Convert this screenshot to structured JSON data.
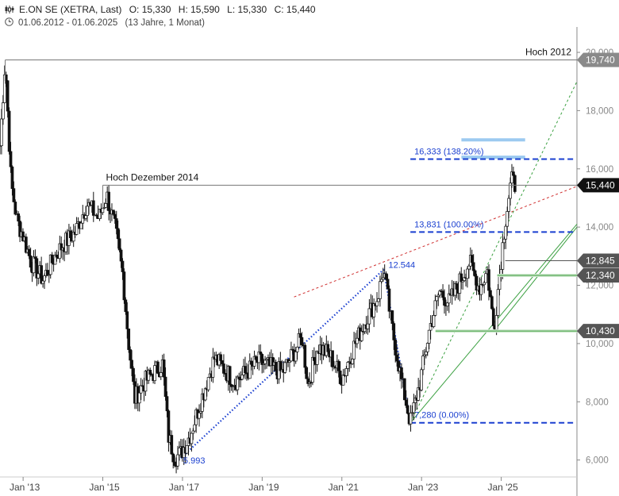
{
  "header": {
    "symbol_line": "E.ON SE (XETRA, Last)",
    "open": "O: 15,330",
    "high": "H: 15,590",
    "low": "L: 15,330",
    "close": "C: 15,440",
    "range": "01.06.2012 - 01.06.2025",
    "duration": "(13 Jahre, 1 Monat)",
    "icon": "candlestick-icon",
    "clock_icon": "clock-icon"
  },
  "chart_data": {
    "type": "candlestick",
    "x_tick_labels": [
      "Jan '13",
      "Jan '15",
      "Jan '17",
      "Jan '19",
      "Jan '21",
      "Jan '23",
      "Jan '25"
    ],
    "x_tick_years": [
      2013,
      2015,
      2017,
      2019,
      2021,
      2023,
      2025
    ],
    "x_range": [
      2012.42,
      2026.9
    ],
    "y_tick_labels": [
      "6,000",
      "8,000",
      "10,000",
      "12,000",
      "14,000",
      "16,000",
      "18,000",
      "20,000"
    ],
    "y_ticks": [
      6,
      8,
      10,
      12,
      14,
      16,
      18,
      20
    ],
    "ylim": [
      5.5,
      20.6
    ],
    "grid": false,
    "path": [
      [
        2012.42,
        16.8
      ],
      [
        2012.55,
        19.74
      ],
      [
        2012.7,
        15.5
      ],
      [
        2012.85,
        14.2
      ],
      [
        2013.0,
        13.7
      ],
      [
        2013.2,
        12.8
      ],
      [
        2013.5,
        12.2
      ],
      [
        2013.8,
        13.0
      ],
      [
        2014.0,
        13.4
      ],
      [
        2014.3,
        13.8
      ],
      [
        2014.6,
        14.8
      ],
      [
        2014.9,
        14.3
      ],
      [
        2015.1,
        15.1
      ],
      [
        2015.3,
        14.0
      ],
      [
        2015.5,
        12.4
      ],
      [
        2015.65,
        10.0
      ],
      [
        2015.8,
        8.1
      ],
      [
        2016.0,
        8.6
      ],
      [
        2016.2,
        8.9
      ],
      [
        2016.5,
        9.3
      ],
      [
        2016.65,
        6.8
      ],
      [
        2016.8,
        6.1
      ],
      [
        2016.95,
        6.2
      ],
      [
        2017.2,
        6.9
      ],
      [
        2017.5,
        8.2
      ],
      [
        2017.8,
        9.5
      ],
      [
        2018.0,
        9.2
      ],
      [
        2018.3,
        8.7
      ],
      [
        2018.6,
        9.0
      ],
      [
        2018.9,
        9.4
      ],
      [
        2019.2,
        9.2
      ],
      [
        2019.5,
        9.0
      ],
      [
        2019.8,
        9.7
      ],
      [
        2020.0,
        10.2
      ],
      [
        2020.15,
        8.6
      ],
      [
        2020.4,
        9.9
      ],
      [
        2020.7,
        9.6
      ],
      [
        2021.0,
        8.8
      ],
      [
        2021.3,
        9.9
      ],
      [
        2021.6,
        10.8
      ],
      [
        2021.9,
        11.6
      ],
      [
        2022.05,
        12.544
      ],
      [
        2022.25,
        10.6
      ],
      [
        2022.5,
        8.7
      ],
      [
        2022.72,
        7.28
      ],
      [
        2022.95,
        8.6
      ],
      [
        2023.2,
        10.5
      ],
      [
        2023.45,
        11.8
      ],
      [
        2023.7,
        11.4
      ],
      [
        2023.95,
        12.1
      ],
      [
        2024.2,
        12.8
      ],
      [
        2024.45,
        11.9
      ],
      [
        2024.65,
        12.5
      ],
      [
        2024.82,
        10.43
      ],
      [
        2024.95,
        12.3
      ],
      [
        2025.1,
        14.2
      ],
      [
        2025.25,
        15.6
      ],
      [
        2025.35,
        15.44
      ]
    ],
    "levels": [
      {
        "value": 19.74,
        "label": "Hoch 2012",
        "tag": "19,740",
        "tag_color": "#8a8a8a",
        "line_color": "#777777",
        "style": "solid",
        "from_x": 2012.55
      },
      {
        "value": 15.44,
        "label": "Hoch Dezember 2014",
        "tag": "15,440",
        "tag_color": "#111111",
        "line_color": "#777777",
        "style": "solid",
        "from_x": 2015.0
      },
      {
        "value": 12.845,
        "label": "",
        "tag": "12,845",
        "tag_color": "#555555",
        "line_color": "#555555",
        "style": "solid",
        "from_x": 2025.1
      },
      {
        "value": 12.34,
        "label": "",
        "tag": "12,340",
        "tag_color": "#555555",
        "line_color": "#3a9a3a",
        "style": "solid-band",
        "from_x": 2024.9
      },
      {
        "value": 10.43,
        "label": "",
        "tag": "10,430",
        "tag_color": "#555555",
        "line_color": "#3a9a3a",
        "style": "solid-band",
        "from_x": 2023.35
      }
    ],
    "fib_levels": [
      {
        "value": 16.333,
        "label": "16,333 (138.20%)"
      },
      {
        "value": 13.831,
        "label": "13,831 (100.00%)"
      },
      {
        "value": 7.28,
        "label": "7,280 (0.00%)"
      }
    ],
    "fib_color": "#1a3fd0",
    "target_zone": {
      "top": 17.05,
      "bottom": 16.4,
      "color": "#9ccaf0"
    },
    "annotations": [
      {
        "x": 2016.9,
        "y": 5.993,
        "text": "5.993"
      },
      {
        "x": 2022.05,
        "y": 12.544,
        "text": "12.544"
      }
    ],
    "trendlines": [
      {
        "from": [
          2016.9,
          5.993
        ],
        "to": [
          2022.05,
          12.544
        ],
        "color": "#1a3fd0",
        "style": "dotted"
      },
      {
        "from": [
          2022.05,
          12.544
        ],
        "to": [
          2022.72,
          7.28
        ],
        "color": "#1a3fd0",
        "style": "dotted"
      },
      {
        "from": [
          2019.8,
          11.6
        ],
        "to": [
          2026.9,
          15.4
        ],
        "color": "#d03030",
        "style": "dashed"
      },
      {
        "from": [
          2022.72,
          7.28
        ],
        "to": [
          2026.9,
          19.0
        ],
        "color": "#3aa040",
        "style": "dashed"
      },
      {
        "from": [
          2022.72,
          7.28
        ],
        "to": [
          2026.9,
          14.1
        ],
        "color": "#3aa040",
        "style": "solid"
      },
      {
        "from": [
          2024.82,
          10.43
        ],
        "to": [
          2026.9,
          14.0
        ],
        "color": "#3aa040",
        "style": "solid"
      }
    ]
  }
}
